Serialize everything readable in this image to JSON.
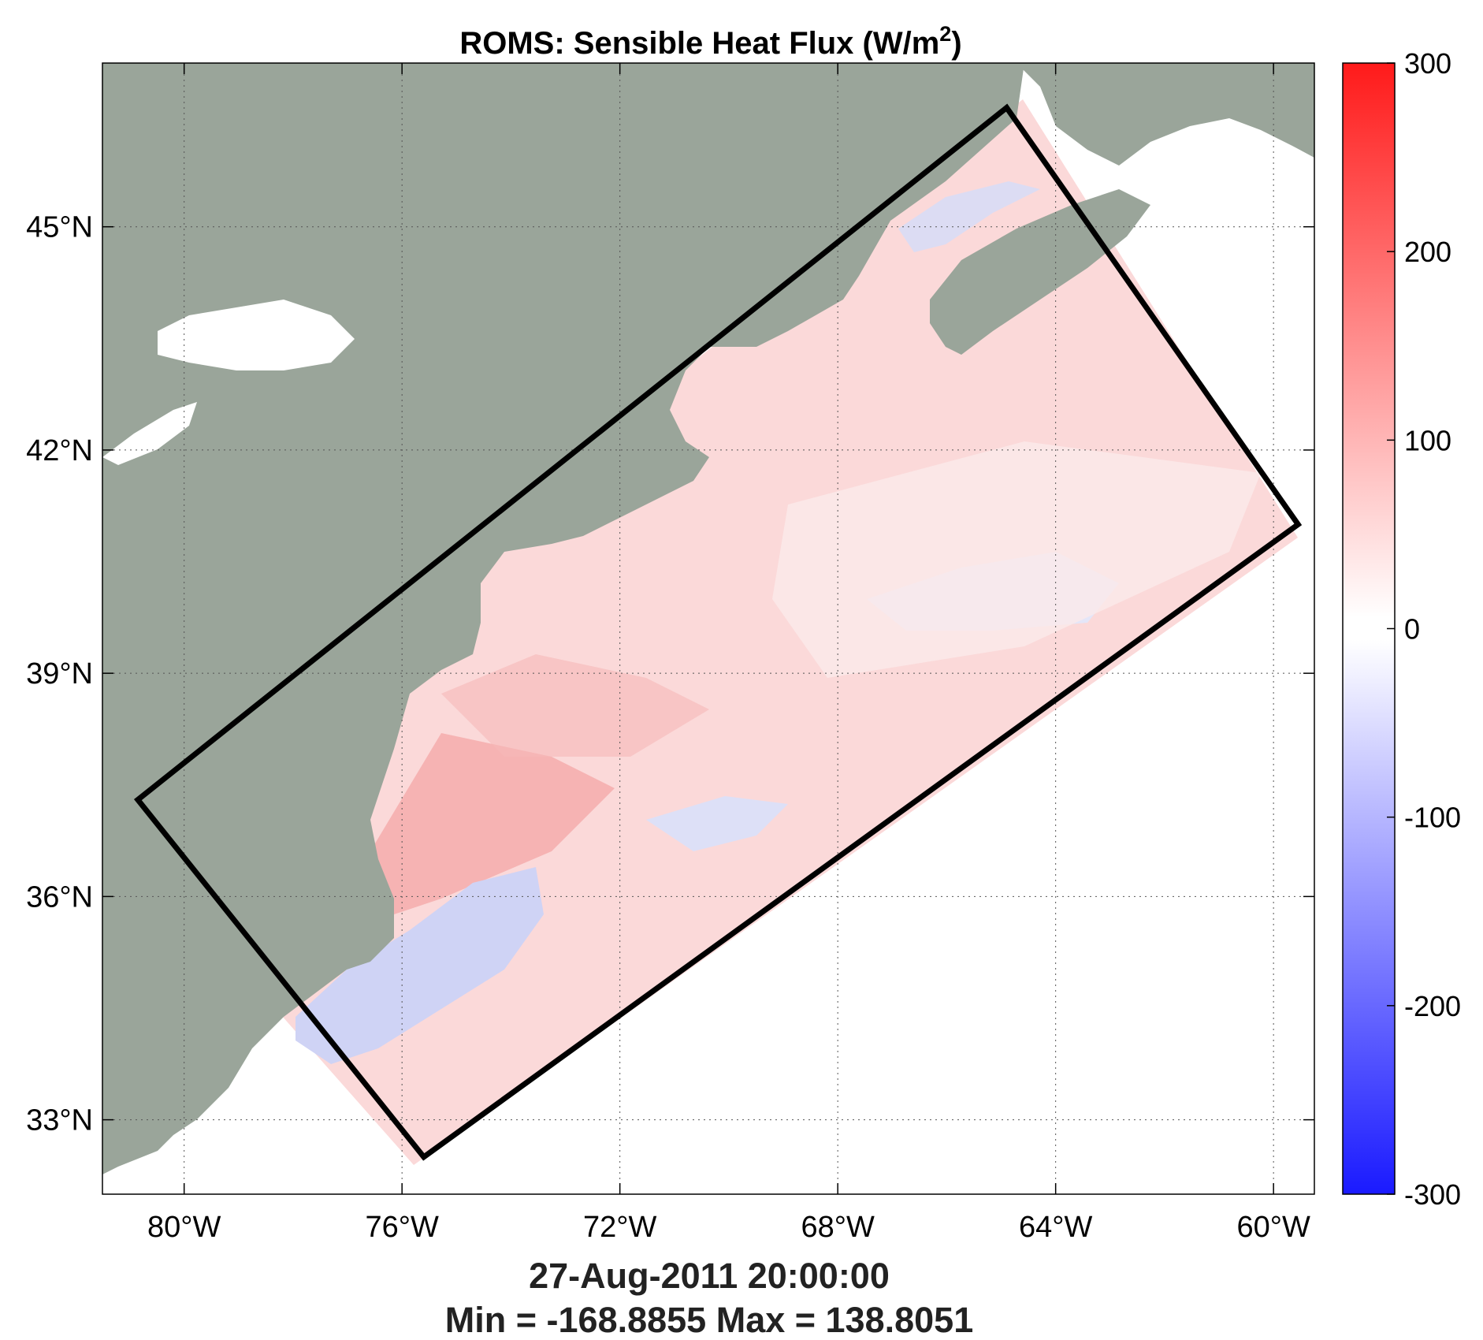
{
  "title": {
    "main": "ROMS: Sensible Heat Flux (W/m",
    "superscript": "2",
    "close": ")"
  },
  "footer": {
    "datetime": "27-Aug-2011 20:00:00",
    "stats": "Min = -168.8855  Max = 138.8051"
  },
  "colors": {
    "land": "#9aa59a",
    "ocean_positive": "#fbd9d9",
    "ocean_strong": "#f4a3a3",
    "ocean_negative": "#cfd3f5",
    "domain_box": "#000000",
    "colorbar_top": "#ff1a1a",
    "colorbar_zero": "#ffffff",
    "colorbar_bottom": "#1a1aff"
  },
  "map": {
    "lon_range": [
      -81.5,
      -59.25
    ],
    "lat_range": [
      32.0,
      47.2
    ],
    "x_ticks": [
      {
        "lon": -80,
        "label": "80°W"
      },
      {
        "lon": -76,
        "label": "76°W"
      },
      {
        "lon": -72,
        "label": "72°W"
      },
      {
        "lon": -68,
        "label": "68°W"
      },
      {
        "lon": -64,
        "label": "64°W"
      },
      {
        "lon": -60,
        "label": "60°W"
      }
    ],
    "y_ticks": [
      {
        "lat": 45,
        "label": "45°N"
      },
      {
        "lat": 42,
        "label": "42°N"
      },
      {
        "lat": 39,
        "label": "39°N"
      },
      {
        "lat": 36,
        "label": "36°N"
      },
      {
        "lat": 33,
        "label": "33°N"
      }
    ],
    "domain_box_corners": [
      {
        "lon": -80.85,
        "lat": 37.3
      },
      {
        "lon": -64.9,
        "lat": 46.6
      },
      {
        "lon": -59.55,
        "lat": 41.0
      },
      {
        "lon": -75.6,
        "lat": 32.5
      }
    ]
  },
  "colorbar": {
    "range": [
      -300,
      300
    ],
    "ticks": [
      {
        "value": 300,
        "label": "300"
      },
      {
        "value": 200,
        "label": "200"
      },
      {
        "value": 100,
        "label": "100"
      },
      {
        "value": 0,
        "label": "0"
      },
      {
        "value": -100,
        "label": "-100"
      },
      {
        "value": -200,
        "label": "-200"
      },
      {
        "value": -300,
        "label": "-300"
      }
    ]
  }
}
